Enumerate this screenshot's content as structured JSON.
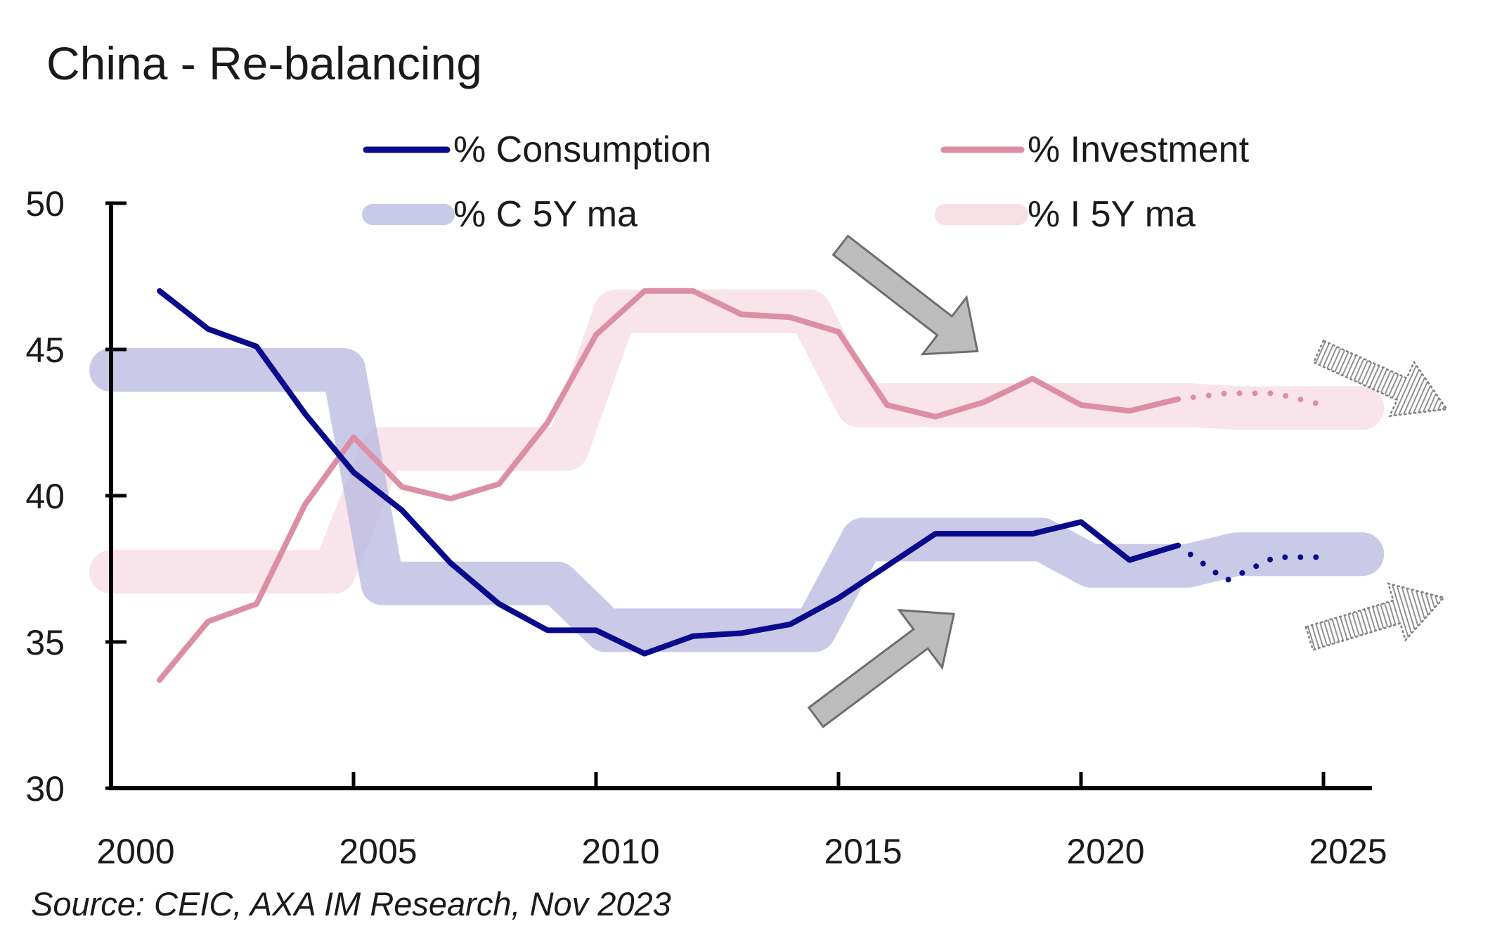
{
  "chart_data": {
    "type": "line",
    "title": "China - Re-balancing",
    "xlabel": "",
    "ylabel": "",
    "xlim": [
      2000,
      2026
    ],
    "ylim": [
      30,
      50
    ],
    "x_ticks": [
      2000,
      2005,
      2010,
      2015,
      2020,
      2025
    ],
    "y_ticks": [
      30,
      35,
      40,
      45,
      50
    ],
    "grid": false,
    "legend_position": "top",
    "source": "Source: CEIC, AXA IM Research, Nov 2023",
    "series": [
      {
        "name": "% Consumption",
        "color": "#0a0a8c",
        "x": [
          2001,
          2002,
          2003,
          2004,
          2005,
          2006,
          2007,
          2008,
          2009,
          2010,
          2011,
          2012,
          2013,
          2014,
          2015,
          2016,
          2017,
          2018,
          2019,
          2020,
          2021,
          2022
        ],
        "values": [
          47.0,
          45.7,
          45.1,
          42.8,
          40.8,
          39.5,
          37.7,
          36.3,
          35.4,
          35.4,
          34.6,
          35.2,
          35.3,
          35.6,
          36.5,
          37.6,
          38.7,
          38.7,
          38.7,
          39.1,
          37.8,
          38.3
        ],
        "forecast_x": [
          2022,
          2023,
          2024,
          2025
        ],
        "forecast_values": [
          38.3,
          37.1,
          37.9,
          37.9
        ]
      },
      {
        "name": "% Investment",
        "color": "#dc8fa4",
        "x": [
          2001,
          2002,
          2003,
          2004,
          2005,
          2006,
          2007,
          2008,
          2009,
          2010,
          2011,
          2012,
          2013,
          2014,
          2015,
          2016,
          2017,
          2018,
          2019,
          2020,
          2021,
          2022
        ],
        "values": [
          33.7,
          35.7,
          36.3,
          39.7,
          42.0,
          40.3,
          39.9,
          40.4,
          42.5,
          45.5,
          47.0,
          47.0,
          46.2,
          46.1,
          45.6,
          43.1,
          42.7,
          43.2,
          44.0,
          43.1,
          42.9,
          43.3
        ],
        "forecast_x": [
          2022,
          2023,
          2024,
          2025
        ],
        "forecast_values": [
          43.3,
          43.5,
          43.5,
          43.1
        ]
      },
      {
        "name": "% C 5Y ma",
        "color": "#b8b8e0",
        "x": [
          2000,
          2004.8,
          2005.6,
          2009.2,
          2010.2,
          2014.5,
          2015.5,
          2019.2,
          2020.2,
          2022.2,
          2023.2,
          2025.8
        ],
        "values": [
          44.3,
          44.3,
          37.0,
          37.0,
          35.4,
          35.4,
          38.5,
          38.5,
          37.6,
          37.6,
          38.0,
          38.0
        ]
      },
      {
        "name": "% I 5Y ma",
        "color": "#f7dfe6",
        "x": [
          2000,
          2004.6,
          2005.6,
          2009.4,
          2010.4,
          2014.4,
          2015.4,
          2022.2,
          2023.2,
          2025.8
        ],
        "values": [
          37.4,
          37.4,
          41.6,
          41.6,
          46.3,
          46.3,
          43.1,
          43.1,
          43.0,
          43.0
        ]
      }
    ],
    "annotations": [
      {
        "type": "arrow",
        "direction": "down-right",
        "style": "solid-gray"
      },
      {
        "type": "arrow",
        "direction": "up-right",
        "style": "solid-gray"
      },
      {
        "type": "arrow",
        "direction": "down-right",
        "style": "hatched-gray"
      },
      {
        "type": "arrow",
        "direction": "up-right",
        "style": "hatched-gray"
      }
    ]
  }
}
